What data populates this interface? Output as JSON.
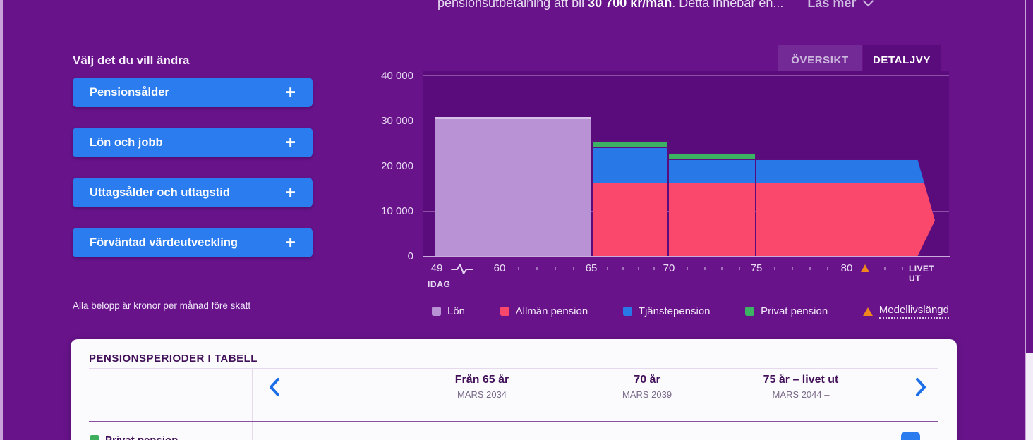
{
  "banner": {
    "part1": "pensionsutbetalning att bli ",
    "amount": "30 700 kr/mån",
    "part2": ". Detta innebär en...",
    "read_more": "Läs mer"
  },
  "sidebar": {
    "heading": "Välj det du vill ändra",
    "buttons": [
      {
        "label": "Pensionsålder"
      },
      {
        "label": "Lön och jobb"
      },
      {
        "label": "Uttagsålder och uttagstid"
      },
      {
        "label": "Förväntad värdeutveckling"
      }
    ],
    "footnote": "Alla belopp är kronor per månad före skatt"
  },
  "tabs": {
    "overview": "ÖVERSIKT",
    "detail": "DETALJVY",
    "active": "DETALJVY"
  },
  "chart_data": {
    "type": "bar",
    "stacked": true,
    "unit": "kronor per månad före skatt",
    "ylim": [
      0,
      40000
    ],
    "yticks": [
      {
        "value": 0,
        "label": "0"
      },
      {
        "value": 10000,
        "label": "10 000"
      },
      {
        "value": 20000,
        "label": "20 000"
      },
      {
        "value": 30000,
        "label": "30 000"
      },
      {
        "value": 40000,
        "label": "40 000"
      }
    ],
    "x_axis": {
      "ticks": [
        "49",
        "60",
        "65",
        "70",
        "75",
        "80",
        "LIVET UT"
      ],
      "today_label": "IDAG",
      "axis_break_after": "49",
      "life_expectancy_marker": {
        "symbol": "triangle",
        "approx_age": 81
      }
    },
    "periods": [
      {
        "range": "49-65 (idag till pension)",
        "arrow_right": false,
        "segments": [
          {
            "name": "Lön",
            "key": "lon",
            "value": 31000
          }
        ]
      },
      {
        "range": "65-70",
        "arrow_right": false,
        "segments": [
          {
            "name": "Allmän pension",
            "key": "allman",
            "value": 16300
          },
          {
            "name": "Tjänstepension",
            "key": "tjanste",
            "value": 8200
          },
          {
            "name": "Privat pension",
            "key": "privat",
            "value": 1400
          }
        ]
      },
      {
        "range": "70-75",
        "arrow_right": false,
        "segments": [
          {
            "name": "Allmän pension",
            "key": "allman",
            "value": 16300
          },
          {
            "name": "Tjänstepension",
            "key": "tjanste",
            "value": 5500
          },
          {
            "name": "Privat pension",
            "key": "privat",
            "value": 1200
          }
        ]
      },
      {
        "range": "75-livet ut",
        "arrow_right": true,
        "segments": [
          {
            "name": "Allmän pension",
            "key": "allman",
            "value": 16300
          },
          {
            "name": "Tjänstepension",
            "key": "tjanste",
            "value": 5500
          }
        ]
      }
    ],
    "legend": [
      {
        "label": "Lön",
        "swatch": "square",
        "key": "lon"
      },
      {
        "label": "Allmän pension",
        "swatch": "square",
        "key": "allman"
      },
      {
        "label": "Tjänstepension",
        "swatch": "square",
        "key": "tjanste"
      },
      {
        "label": "Privat pension",
        "swatch": "square",
        "key": "privat"
      },
      {
        "label": "Medellivslängd",
        "swatch": "triangle",
        "key": "orange",
        "underline": "dotted"
      }
    ]
  },
  "table": {
    "title": "PENSIONSPERIODER I TABELL",
    "columns": [
      {
        "title": "Från 65 år",
        "subtitle": "MARS 2034"
      },
      {
        "title": "70 år",
        "subtitle": "MARS 2039"
      },
      {
        "title": "75 år – livet ut",
        "subtitle": "MARS 2044 –"
      }
    ],
    "rows": [
      {
        "label": "Privat pension",
        "swatch": "privat"
      }
    ]
  },
  "colors": {
    "lon": "#B892D5",
    "allman": "#F9486B",
    "tjanste": "#2878E8",
    "privat": "#3CB263",
    "orange": "#F0871C",
    "button_blue": "#2A7CEF",
    "page_bg": "#68138A",
    "plot_bg": "#5B0C7C",
    "separator": "#5A0F7D"
  }
}
